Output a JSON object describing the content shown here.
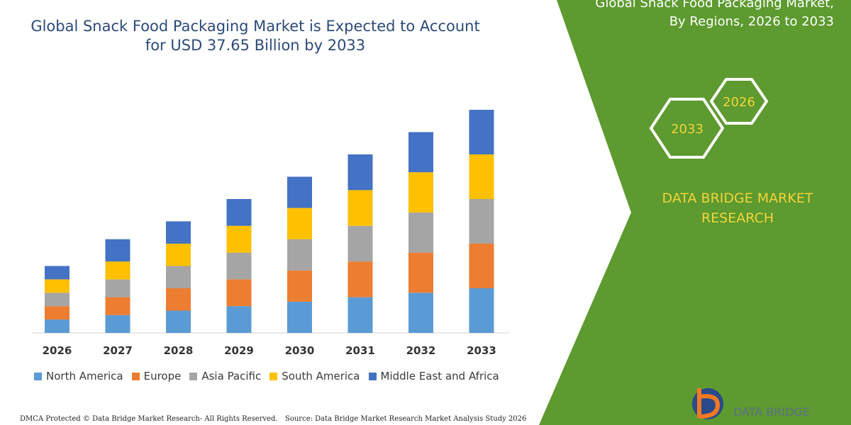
{
  "header": {
    "title_line1": "Global Snack Food Packaging Market is Expected to Account",
    "title_line2": "for USD 37.65 Billion by 2033"
  },
  "right_panel": {
    "title_line1": "Global Snack Food Packaging Market,",
    "title_line2": "By Regions, 2026 to 2033",
    "hexagons": [
      "2033",
      "2026"
    ],
    "brand_line1": "DATA BRIDGE MARKET",
    "brand_line2": "RESEARCH",
    "panel_color": "#5d9a2f"
  },
  "footer": {
    "left": "DMCA Protected © Data Bridge Market Research-  All Rights Reserved.",
    "right": "Source: Data Bridge Market Research  Market Analysis Study 2026"
  },
  "logo": {
    "text": "DATA BRIDGE"
  },
  "chart_data": {
    "type": "bar",
    "stacked": true,
    "categories": [
      "2026",
      "2027",
      "2028",
      "2029",
      "2030",
      "2031",
      "2032",
      "2033"
    ],
    "ylim": [
      0,
      100
    ],
    "grid": false,
    "legend_position": "bottom",
    "series": [
      {
        "name": "North America",
        "color": "#5b9bd5",
        "values": [
          6,
          8,
          10,
          12,
          14,
          16,
          18,
          20
        ]
      },
      {
        "name": "Europe",
        "color": "#ed7d31",
        "values": [
          6,
          8,
          10,
          12,
          14,
          16,
          18,
          20
        ]
      },
      {
        "name": "Asia Pacific",
        "color": "#a5a5a5",
        "values": [
          6,
          8,
          10,
          12,
          14,
          16,
          18,
          20
        ]
      },
      {
        "name": "South America",
        "color": "#ffc000",
        "values": [
          6,
          8,
          10,
          12,
          14,
          16,
          18,
          20
        ]
      },
      {
        "name": "Middle East and Africa",
        "color": "#4472c4",
        "values": [
          6,
          10,
          10,
          12,
          14,
          16,
          18,
          20
        ]
      }
    ]
  }
}
